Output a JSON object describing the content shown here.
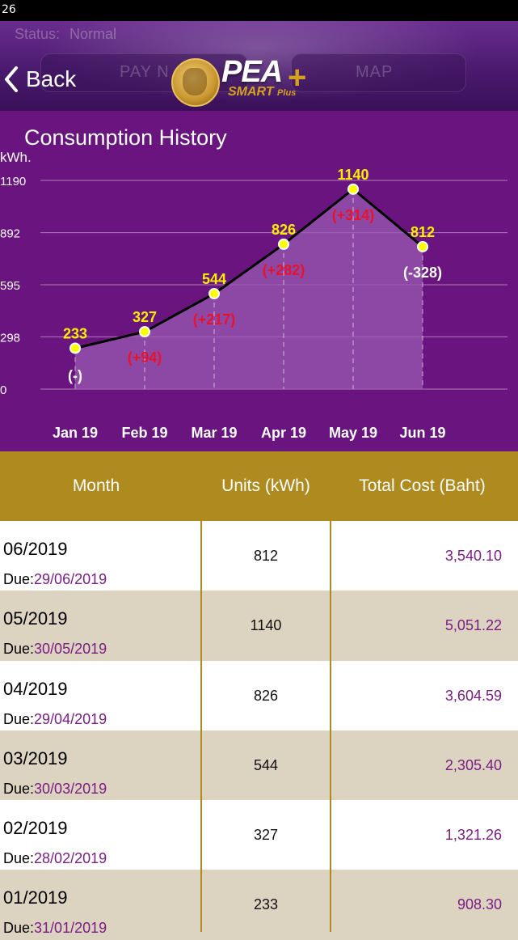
{
  "status_bar": {
    "time": "26"
  },
  "header": {
    "status_label": "Status:",
    "status_value": "Normal",
    "back_label": "Back",
    "ghost_left": "PAY N",
    "ghost_right": "MAP",
    "logo_text": "PEA",
    "logo_sub": "SMART",
    "logo_sub2": "Plus"
  },
  "chart_title": "Consumption History",
  "chart_data": {
    "type": "area",
    "ylabel": "kWh.",
    "categories": [
      "Jan 19",
      "Feb 19",
      "Mar 19",
      "Apr 19",
      "May 19",
      "Jun 19"
    ],
    "values": [
      233,
      327,
      544,
      826,
      1140,
      812
    ],
    "value_labels": [
      "233",
      "327",
      "544",
      "826",
      "1140",
      "812"
    ],
    "change_labels": [
      "(-)",
      "(+94)",
      "(+217)",
      "(+282)",
      "(+314)",
      "(-328)"
    ],
    "yticks": [
      0,
      298,
      595,
      892,
      1190
    ],
    "ytick_labels": [
      "0",
      "298",
      "595",
      "892",
      "1190"
    ],
    "ylim": [
      0,
      1190
    ],
    "grid": true,
    "colors": {
      "line": "#000000",
      "point": "#ffff00",
      "value_text": "#ffee00",
      "increase_text": "#e8122c",
      "neutral_text": "#ffffff",
      "fill": "#9a5ab2"
    }
  },
  "table": {
    "headers": {
      "month": "Month",
      "units": "Units (kWh)",
      "cost": "Total Cost (Baht)"
    },
    "due_label": "Due:",
    "rows": [
      {
        "month": "06/2019",
        "due": "29/06/2019",
        "units": "812",
        "cost": "3,540.10"
      },
      {
        "month": "05/2019",
        "due": "30/05/2019",
        "units": "1140",
        "cost": "5,051.22"
      },
      {
        "month": "04/2019",
        "due": "29/04/2019",
        "units": "826",
        "cost": "3,604.59"
      },
      {
        "month": "03/2019",
        "due": "30/03/2019",
        "units": "544",
        "cost": "2,305.40"
      },
      {
        "month": "02/2019",
        "due": "28/02/2019",
        "units": "327",
        "cost": "1,321.26"
      },
      {
        "month": "01/2019",
        "due": "31/01/2019",
        "units": "233",
        "cost": "908.30"
      }
    ]
  }
}
